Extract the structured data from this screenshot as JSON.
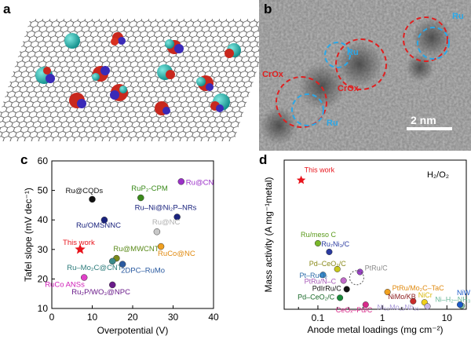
{
  "panels": {
    "a": {
      "label": "a"
    },
    "b": {
      "label": "b",
      "scale_bar": "2 nm",
      "annotations": [
        "Ru",
        "CrOx",
        "CrOx",
        "Ru",
        "Ru"
      ]
    },
    "c": {
      "label": "c"
    },
    "d": {
      "label": "d",
      "condition": "H₂/O₂"
    }
  },
  "chart_data": [
    {
      "type": "scatter",
      "panel": "c",
      "xlabel": "Overpotential (V)",
      "ylabel": "Tafel slope (mV dec⁻¹)",
      "xlim": [
        0,
        40
      ],
      "ylim": [
        10,
        60
      ],
      "xticks": [
        "0",
        "10",
        "20",
        "30",
        "40"
      ],
      "yticks": [
        "10",
        "20",
        "30",
        "40",
        "50",
        "60"
      ],
      "points": [
        {
          "label": "Ru@CQDs",
          "x": 10,
          "y": 47,
          "color": "#111111",
          "label_color": "#111111"
        },
        {
          "label": "RuP₂-CPM",
          "x": 22,
          "y": 47.5,
          "color": "#3a8a1a",
          "label_color": "#3a8a1a"
        },
        {
          "label": "Ru@CN",
          "x": 32,
          "y": 53,
          "color": "#9b30c8",
          "label_color": "#9b30c8"
        },
        {
          "label": "Ru/OMSNNC",
          "x": 13,
          "y": 40,
          "color": "#1a237e",
          "label_color": "#1a237e"
        },
        {
          "label": "Ru–Ni@Ni₂P–NRs",
          "x": 31,
          "y": 41,
          "color": "#1a237e",
          "label_color": "#1a237e"
        },
        {
          "label": "Ru@NC",
          "x": 26,
          "y": 36,
          "color": "#c8c8c8",
          "label_color": "#b0b0b0"
        },
        {
          "label": "This work",
          "x": 7,
          "y": 30,
          "color": "#e8141c",
          "label_color": "#e8141c",
          "star": true
        },
        {
          "label": "Ru@MWCNT",
          "x": 16,
          "y": 27,
          "color": "#7a8a1a",
          "label_color": "#5a8a1a"
        },
        {
          "label": "RuCo@NC",
          "x": 27,
          "y": 31,
          "color": "#f0a020",
          "label_color": "#e08a10"
        },
        {
          "label": "Ru–Mo₂C@CNT",
          "x": 15,
          "y": 26,
          "color": "#3a8a8a",
          "label_color": "#2a7a7a"
        },
        {
          "label": "2DPC–RuMo",
          "x": 17.5,
          "y": 25,
          "color": "#2a5aa0",
          "label_color": "#2a5aa0"
        },
        {
          "label": "RuCo ANSs",
          "x": 8,
          "y": 20.5,
          "color": "#e040c8",
          "label_color": "#d020b8"
        },
        {
          "label": "Ru₂P/WO₃@NPC",
          "x": 15,
          "y": 18,
          "color": "#6a1a8a",
          "label_color": "#6a1a8a"
        }
      ]
    },
    {
      "type": "scatter",
      "panel": "d",
      "xlabel": "Anode metal loadings (mg cm⁻²)",
      "ylabel": "Mass activity (A mg⁻¹metal)",
      "xscale": "log",
      "xlim": [
        0.03,
        20
      ],
      "ylim": [
        0,
        26
      ],
      "xticks": [
        "0.1",
        "1",
        "10"
      ],
      "points": [
        {
          "label": "This work",
          "x": 0.055,
          "y": 22.5,
          "color": "#e8141c",
          "label_color": "#e8141c",
          "star": true
        },
        {
          "label": "Ru/meso C",
          "x": 0.1,
          "y": 11.5,
          "color": "#7ab82a",
          "label_color": "#5a9a1a"
        },
        {
          "label": "Ru₇Ni₃/C",
          "x": 0.15,
          "y": 10,
          "color": "#2a3aa0",
          "label_color": "#2a3aa0"
        },
        {
          "label": "Pd–CeO₂/C",
          "x": 0.2,
          "y": 7,
          "color": "#c8c81a",
          "label_color": "#8a8a1a"
        },
        {
          "label": "Pt–RuO₂",
          "x": 0.12,
          "y": 6,
          "color": "#3a8ac8",
          "label_color": "#2a6aa8"
        },
        {
          "label": "PtRu/C",
          "x": 0.45,
          "y": 6.5,
          "color": "#9a40c8",
          "label_color": "#8a8a8a"
        },
        {
          "label": "PtRu/N–C",
          "x": 0.25,
          "y": 5,
          "color": "#c06ac8",
          "label_color": "#a85ab8"
        },
        {
          "label": "PdIrRu/C",
          "x": 0.28,
          "y": 3.5,
          "color": "#111111",
          "label_color": "#111111"
        },
        {
          "label": "Pd–CeO₂/C",
          "x": 0.22,
          "y": 2,
          "color": "#1a8a3a",
          "label_color": "#1a6a2a"
        },
        {
          "label": "CeOₓ–Pd/C",
          "x": 0.55,
          "y": 0.8,
          "color": "#d82a8a",
          "label_color": "#d82a8a"
        },
        {
          "label": "PtRu/Mo₂C–TaC",
          "x": 1.2,
          "y": 3,
          "color": "#f0a020",
          "label_color": "#e08a10"
        },
        {
          "label": "NiMo/KB",
          "x": 3,
          "y": 1.4,
          "color": "#c82a2a",
          "label_color": "#8a1a1a"
        },
        {
          "label": "NiCr",
          "x": 4.5,
          "y": 1.2,
          "color": "#f0d01a",
          "label_color": "#d8b80a"
        },
        {
          "label": "Ni₅₂Mo₁₃Nb₃₅",
          "x": 5,
          "y": 0.5,
          "color": "#c8b8e8",
          "label_color": "#a898d8"
        },
        {
          "label": "Ni–H₂–NH₃",
          "x": 17,
          "y": 0.6,
          "color": "#8ac8a8",
          "label_color": "#6ab898"
        },
        {
          "label": "NiW",
          "x": 16,
          "y": 0.8,
          "color": "#1a5ac8",
          "label_color": "#1a5ac8"
        }
      ]
    }
  ]
}
